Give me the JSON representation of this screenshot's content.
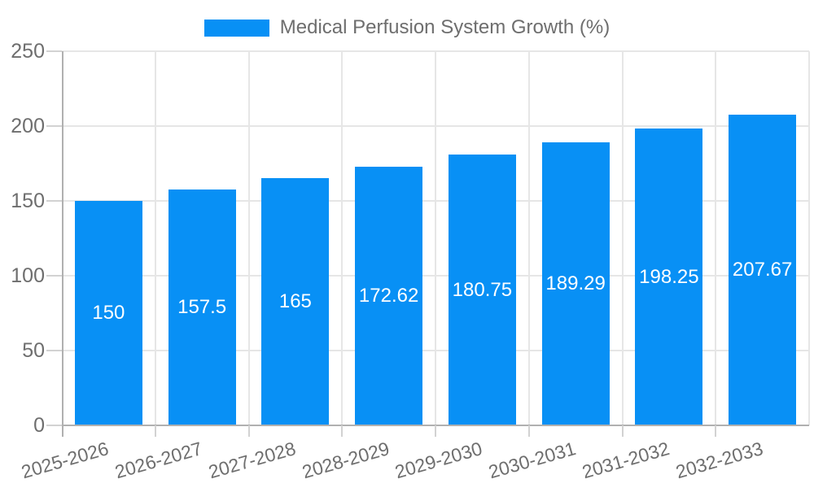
{
  "chart_data": {
    "type": "bar",
    "title": "Medical Perfusion System Growth (%)",
    "categories": [
      "2025-2026",
      "2026-2027",
      "2027-2028",
      "2028-2029",
      "2029-2030",
      "2030-2031",
      "2031-2032",
      "2032-2033"
    ],
    "values": [
      150,
      157.5,
      165,
      172.62,
      180.75,
      189.29,
      198.25,
      207.67
    ],
    "xlabel": "",
    "ylabel": "",
    "ylim": [
      0,
      250
    ],
    "yticks": [
      0,
      50,
      100,
      150,
      200,
      250
    ],
    "grid": true,
    "legend_position": "top",
    "colors": {
      "bar": "#0890f5",
      "bar_label": "#ffffff",
      "grid": "#e6e6e6",
      "axis": "#b0b0b0",
      "tick": "#d2d2d2",
      "text": "#6e6e6e"
    }
  }
}
